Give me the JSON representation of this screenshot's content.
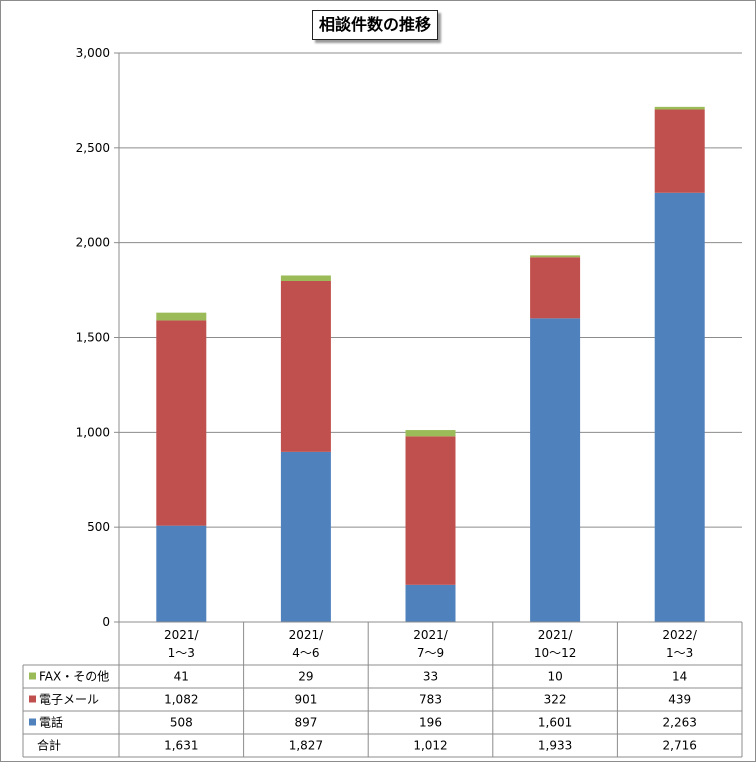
{
  "chart_data": {
    "type": "bar",
    "stacked": true,
    "title": "相談件数の推移",
    "categories": [
      [
        "2021/",
        "1～3"
      ],
      [
        "2021/",
        "4～6"
      ],
      [
        "2021/",
        "7～9"
      ],
      [
        "2021/",
        "10～12"
      ],
      [
        "2022/",
        "1～3"
      ]
    ],
    "series": [
      {
        "name": "電話",
        "color": "#4f81bd",
        "values": [
          508,
          897,
          196,
          1601,
          2263
        ],
        "labels": [
          "508",
          "897",
          "196",
          "1,601",
          "2,263"
        ]
      },
      {
        "name": "電子メール",
        "color": "#c0504d",
        "values": [
          1082,
          901,
          783,
          322,
          439
        ],
        "labels": [
          "1,082",
          "901",
          "783",
          "322",
          "439"
        ]
      },
      {
        "name": "FAX・その他",
        "color": "#9bbb59",
        "values": [
          41,
          29,
          33,
          10,
          14
        ],
        "labels": [
          "41",
          "29",
          "33",
          "10",
          "14"
        ]
      }
    ],
    "table_rows_order": [
      "FAX・その他",
      "電子メール",
      "電話"
    ],
    "total": {
      "name": "合計",
      "labels": [
        "1,631",
        "1,827",
        "1,012",
        "1,933",
        "2,716"
      ]
    },
    "ylim": [
      0,
      3000
    ],
    "yticks": [
      {
        "v": 0,
        "label": "0"
      },
      {
        "v": 500,
        "label": "500"
      },
      {
        "v": 1000,
        "label": "1,000"
      },
      {
        "v": 1500,
        "label": "1,500"
      },
      {
        "v": 2000,
        "label": "2,000"
      },
      {
        "v": 2500,
        "label": "2,500"
      },
      {
        "v": 3000,
        "label": "3,000"
      }
    ],
    "grid": true,
    "legend": "data-table-left"
  }
}
